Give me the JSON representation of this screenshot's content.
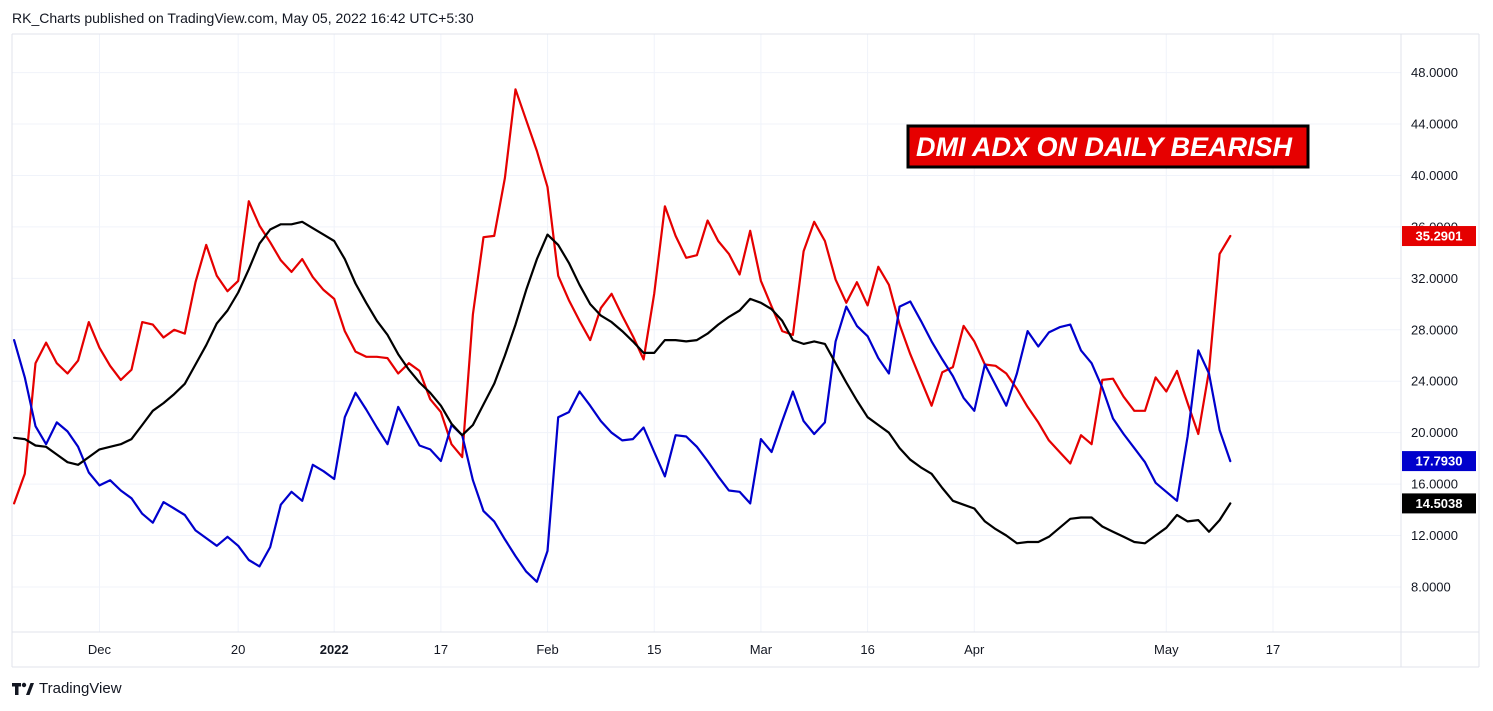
{
  "header": {
    "published_text": "RK_Charts published on TradingView.com, May 05, 2022 16:42 UTC+5:30"
  },
  "footer": {
    "brand": "TradingView",
    "logo_icon": "tradingview-logo-icon"
  },
  "chart_data": {
    "type": "line",
    "annotation": "DMI ADX ON DAILY BEARISH",
    "grid": true,
    "ylim": [
      4.5,
      51.0
    ],
    "y_ticks": [
      "8.0000",
      "12.0000",
      "16.0000",
      "20.0000",
      "24.0000",
      "28.0000",
      "32.0000",
      "36.0000",
      "40.0000",
      "44.0000",
      "48.0000"
    ],
    "y_tick_values": [
      8,
      12,
      16,
      20,
      24,
      28,
      32,
      36,
      40,
      44,
      48
    ],
    "x_ticks": [
      {
        "label": "Dec",
        "i": 8,
        "bold": false
      },
      {
        "label": "20",
        "i": 21,
        "bold": false
      },
      {
        "label": "2022",
        "i": 30,
        "bold": true
      },
      {
        "label": "17",
        "i": 40,
        "bold": false
      },
      {
        "label": "Feb",
        "i": 50,
        "bold": false
      },
      {
        "label": "15",
        "i": 60,
        "bold": false
      },
      {
        "label": "Mar",
        "i": 70,
        "bold": false
      },
      {
        "label": "16",
        "i": 80,
        "bold": false
      },
      {
        "label": "Apr",
        "i": 90,
        "bold": false
      },
      {
        "label": "May",
        "i": 108,
        "bold": false
      },
      {
        "label": "17",
        "i": 118,
        "bold": false
      }
    ],
    "x_range": [
      -0.2,
      130
    ],
    "series": [
      {
        "color": "#e50000",
        "last_label": "35.2901",
        "values": [
          14.5,
          16.8,
          25.4,
          27.0,
          25.4,
          24.6,
          25.6,
          28.6,
          26.6,
          25.2,
          24.1,
          24.9,
          28.6,
          28.4,
          27.4,
          28.0,
          27.7,
          31.7,
          34.6,
          32.2,
          31.0,
          31.8,
          38.0,
          36.1,
          34.8,
          33.4,
          32.5,
          33.5,
          32.1,
          31.1,
          30.4,
          27.9,
          26.3,
          25.9,
          25.9,
          25.8,
          24.6,
          25.4,
          24.8,
          22.6,
          21.6,
          19.1,
          18.1,
          29.2,
          35.2,
          35.3,
          39.8,
          46.7,
          44.3,
          41.9,
          39.1,
          32.2,
          30.3,
          28.7,
          27.2,
          29.7,
          30.8,
          29.1,
          27.5,
          25.7,
          30.8,
          37.6,
          35.3,
          33.6,
          33.8,
          36.5,
          34.9,
          33.9,
          32.3,
          35.7,
          31.8,
          29.8,
          27.9,
          27.6,
          34.1,
          36.4,
          34.9,
          31.9,
          30.1,
          31.7,
          29.9,
          32.9,
          31.5,
          28.4,
          26.1,
          24.1,
          22.1,
          24.7,
          25.1,
          28.3,
          27.1,
          25.3,
          25.2,
          24.6,
          23.4,
          22.0,
          20.8,
          19.4,
          18.5,
          17.6,
          19.8,
          19.1,
          24.1,
          24.2,
          22.8,
          21.7,
          21.7,
          24.3,
          23.2,
          24.8,
          22.3,
          19.9,
          24.8,
          33.9,
          35.29
        ]
      },
      {
        "color": "#0000cc",
        "last_label": "17.7930",
        "values": [
          27.2,
          24.3,
          20.5,
          19.1,
          20.8,
          20.1,
          18.9,
          16.9,
          15.9,
          16.3,
          15.5,
          14.9,
          13.7,
          13.0,
          14.6,
          14.1,
          13.6,
          12.4,
          11.8,
          11.2,
          11.9,
          11.2,
          10.1,
          9.6,
          11.1,
          14.4,
          15.4,
          14.7,
          17.5,
          17.0,
          16.4,
          21.2,
          23.1,
          21.8,
          20.4,
          19.1,
          22.0,
          20.5,
          19.0,
          18.7,
          17.8,
          20.6,
          19.8,
          16.3,
          13.9,
          13.1,
          11.7,
          10.4,
          9.2,
          8.4,
          10.8,
          21.2,
          21.6,
          23.2,
          22.1,
          20.9,
          20.0,
          19.4,
          19.5,
          20.4,
          18.5,
          16.6,
          19.8,
          19.7,
          18.9,
          17.8,
          16.6,
          15.5,
          15.4,
          14.5,
          19.5,
          18.5,
          20.9,
          23.2,
          20.9,
          19.9,
          20.8,
          27.1,
          29.8,
          28.3,
          27.5,
          25.8,
          24.6,
          29.8,
          30.2,
          28.7,
          27.1,
          25.7,
          24.4,
          22.7,
          21.7,
          25.3,
          23.7,
          22.1,
          24.6,
          27.9,
          26.7,
          27.8,
          28.2,
          28.4,
          26.4,
          25.4,
          23.5,
          21.1,
          19.9,
          18.8,
          17.7,
          16.1,
          15.4,
          14.7,
          19.7,
          26.4,
          24.6,
          20.2,
          17.79
        ]
      },
      {
        "color": "#000000",
        "last_label": "14.5038",
        "values": [
          19.6,
          19.5,
          19.0,
          18.9,
          18.3,
          17.7,
          17.5,
          18.1,
          18.7,
          18.9,
          19.1,
          19.5,
          20.6,
          21.7,
          22.3,
          23.0,
          23.8,
          25.3,
          26.8,
          28.5,
          29.5,
          30.9,
          32.7,
          34.7,
          35.8,
          36.2,
          36.2,
          36.4,
          35.9,
          35.4,
          34.9,
          33.5,
          31.6,
          30.1,
          28.7,
          27.6,
          26.1,
          24.9,
          23.9,
          23.1,
          22.1,
          20.7,
          19.8,
          20.6,
          22.2,
          23.8,
          26.0,
          28.4,
          31.1,
          33.5,
          35.4,
          34.6,
          33.2,
          31.5,
          30.0,
          29.1,
          28.6,
          27.9,
          27.1,
          26.2,
          26.2,
          27.2,
          27.2,
          27.1,
          27.2,
          27.7,
          28.4,
          29.0,
          29.5,
          30.4,
          30.1,
          29.6,
          28.7,
          27.2,
          26.9,
          27.1,
          26.9,
          25.4,
          23.9,
          22.5,
          21.2,
          20.6,
          20.0,
          18.8,
          17.9,
          17.3,
          16.8,
          15.7,
          14.7,
          14.4,
          14.1,
          13.1,
          12.5,
          12.0,
          11.4,
          11.5,
          11.5,
          11.9,
          12.6,
          13.3,
          13.4,
          13.4,
          12.7,
          12.3,
          11.9,
          11.5,
          11.4,
          12.0,
          12.6,
          13.6,
          13.1,
          13.2,
          12.3,
          13.2,
          14.5
        ]
      }
    ]
  }
}
